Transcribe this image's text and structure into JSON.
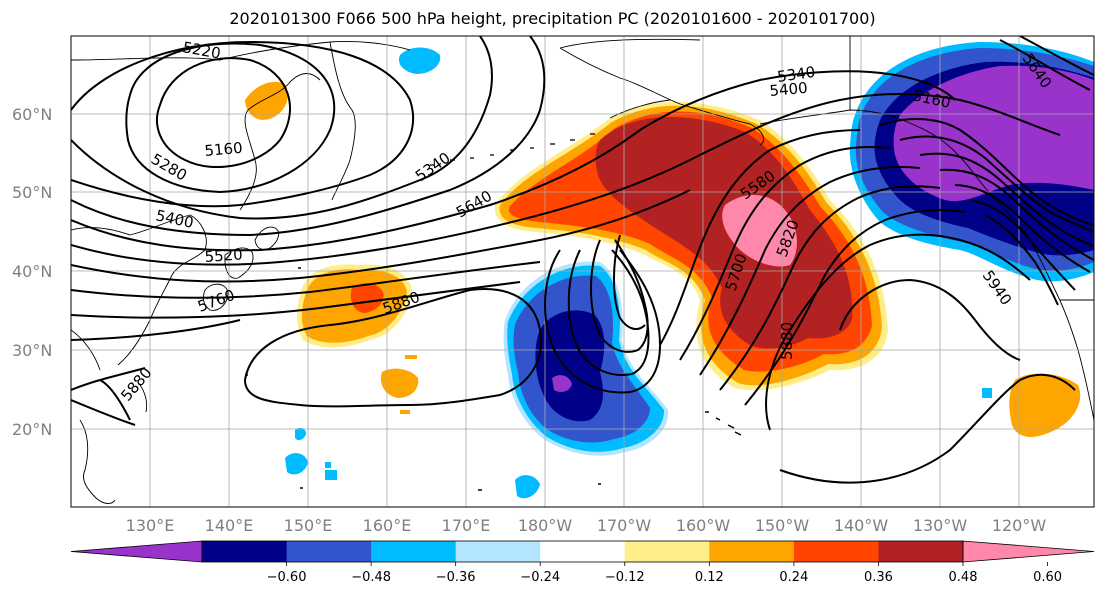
{
  "title": "2020101300 F066 500 hPa height, precipitation PC (2020101600 - 2020101700)",
  "lon_ticks": [
    "130°E",
    "140°E",
    "150°E",
    "160°E",
    "170°E",
    "180°W",
    "170°W",
    "160°W",
    "150°W",
    "140°W",
    "130°W",
    "120°W"
  ],
  "lat_ticks": [
    "20°N",
    "30°N",
    "40°N",
    "50°N",
    "60°N"
  ],
  "height_contour_labels": [
    "5220",
    "5340",
    "5400",
    "5160",
    "5280",
    "5340",
    "5400",
    "5640",
    "5520",
    "5580",
    "5760",
    "5880",
    "5820",
    "5700",
    "5880",
    "5880",
    "5160",
    "5940",
    "5640"
  ],
  "colorbar": {
    "colors": [
      "#9933cc",
      "#000088",
      "#3355cc",
      "#00bbff",
      "#b3e5ff",
      "#ffffff",
      "#ffee88",
      "#ffa500",
      "#ff4500",
      "#b22222",
      "#ff88aa"
    ],
    "labels": [
      "−0.60",
      "−0.48",
      "−0.36",
      "−0.24",
      "−0.12",
      "0.12",
      "0.24",
      "0.36",
      "0.48",
      "0.60"
    ]
  }
}
